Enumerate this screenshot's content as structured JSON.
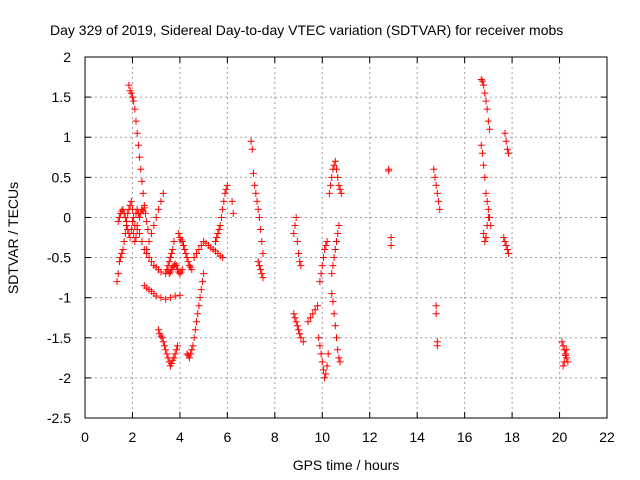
{
  "chart_data": {
    "type": "scatter",
    "title": "Day 329 of 2019, Sidereal Day-to-day VTEC variation (SDTVAR) for receiver mobs",
    "xlabel": "GPS time / hours",
    "ylabel": "SDTVAR / TECUs",
    "xlim": [
      0,
      22
    ],
    "ylim": [
      -2.5,
      2
    ],
    "xticks": [
      0,
      2,
      4,
      6,
      8,
      10,
      12,
      14,
      16,
      18,
      20,
      22
    ],
    "xtick_labels": [
      "0",
      "2",
      "4",
      "6",
      "8",
      "10",
      "12",
      "14",
      "16",
      "18",
      "20",
      "22"
    ],
    "yticks": [
      -2.5,
      -2,
      -1.5,
      -1,
      -0.5,
      0,
      0.5,
      1,
      1.5,
      2
    ],
    "ytick_labels": [
      "-2.5",
      "-2",
      "-1.5",
      "-1",
      "-0.5",
      "0",
      "0.5",
      "1",
      "1.5",
      "2"
    ],
    "grid": true,
    "marker": "+",
    "color": "#ff0000",
    "series": [
      {
        "name": "SDTVAR",
        "x": [
          1.35,
          1.4,
          1.45,
          1.5,
          1.55,
          1.6,
          1.65,
          1.7,
          1.75,
          1.8,
          1.85,
          1.9,
          1.95,
          2.0,
          2.05,
          2.1,
          2.15,
          2.2,
          2.25,
          2.3,
          2.35,
          2.4,
          2.45,
          2.5,
          1.4,
          1.45,
          1.5,
          1.55,
          1.6,
          1.65,
          1.7,
          1.75,
          1.8,
          1.85,
          1.9,
          1.95,
          2.0,
          2.05,
          2.1,
          2.15,
          2.2,
          1.85,
          1.9,
          1.95,
          2.0,
          2.05,
          2.1,
          2.15,
          2.2,
          2.25,
          2.3,
          2.35,
          2.4,
          2.45,
          2.5,
          2.55,
          2.6,
          2.65,
          2.2,
          2.3,
          2.4,
          2.5,
          2.6,
          2.7,
          2.8,
          2.9,
          3.0,
          3.1,
          3.2,
          2.6,
          2.7,
          2.8,
          2.9,
          3.0,
          3.1,
          3.2,
          3.3,
          2.5,
          2.6,
          2.7,
          2.8,
          2.9,
          3.0,
          3.2,
          3.4,
          3.6,
          3.8,
          4.0,
          3.1,
          3.15,
          3.2,
          3.25,
          3.3,
          3.35,
          3.4,
          3.45,
          3.5,
          3.55,
          3.6,
          3.65,
          3.7,
          3.75,
          3.8,
          3.85,
          3.9,
          3.4,
          3.45,
          3.5,
          3.55,
          3.6,
          3.65,
          3.7,
          3.75,
          3.5,
          3.55,
          3.6,
          3.65,
          3.7,
          3.75,
          3.8,
          3.85,
          3.9,
          3.95,
          4.0,
          4.05,
          4.1,
          3.95,
          4.0,
          4.05,
          4.1,
          4.15,
          4.2,
          4.25,
          4.3,
          4.35,
          4.4,
          4.45,
          4.5,
          4.3,
          4.35,
          4.4,
          4.45,
          4.5,
          4.55,
          4.6,
          4.65,
          4.7,
          4.75,
          4.8,
          4.85,
          4.9,
          4.95,
          5.0,
          4.6,
          4.7,
          4.8,
          4.9,
          5.0,
          5.1,
          5.2,
          5.3,
          5.4,
          5.5,
          5.6,
          5.7,
          5.8,
          5.5,
          5.55,
          5.6,
          5.65,
          5.7,
          5.75,
          5.8,
          5.85,
          5.9,
          5.95,
          6.0,
          6.2,
          6.25,
          7.0,
          7.05,
          7.1,
          7.15,
          7.2,
          7.25,
          7.3,
          7.35,
          7.4,
          7.45,
          7.5,
          7.3,
          7.35,
          7.4,
          7.45,
          7.5,
          8.8,
          8.85,
          8.9,
          8.95,
          9.0,
          9.05,
          9.1,
          8.8,
          8.85,
          8.9,
          8.95,
          9.0,
          9.05,
          9.1,
          9.2,
          9.4,
          9.5,
          9.6,
          9.7,
          9.8,
          9.85,
          9.9,
          9.95,
          10.0,
          10.05,
          10.1,
          10.15,
          10.2,
          10.25,
          9.9,
          9.95,
          10.0,
          10.05,
          10.1,
          10.15,
          10.2,
          10.3,
          10.35,
          10.4,
          10.45,
          10.5,
          10.55,
          10.6,
          10.65,
          10.7,
          10.75,
          10.8,
          10.4,
          10.45,
          10.5,
          10.55,
          10.6,
          10.65,
          10.7,
          10.4,
          10.45,
          10.5,
          10.55,
          10.6,
          10.65,
          10.7,
          10.75,
          12.8,
          12.8,
          12.9,
          12.9,
          14.7,
          14.75,
          14.8,
          14.85,
          14.9,
          14.95,
          14.8,
          14.8,
          14.85,
          14.85,
          16.7,
          16.75,
          16.8,
          16.85,
          16.9,
          16.95,
          17.0,
          17.05,
          16.7,
          16.75,
          16.8,
          16.85,
          16.9,
          16.95,
          17.0,
          17.05,
          17.1,
          16.8,
          16.85,
          16.9,
          16.95,
          17.0,
          17.7,
          17.75,
          17.8,
          17.85,
          17.65,
          17.7,
          17.75,
          17.8,
          17.85,
          20.1,
          20.15,
          20.2,
          20.25,
          20.3,
          20.35,
          20.15,
          20.2,
          20.25,
          20.3
        ],
        "y": [
          -0.8,
          -0.7,
          -0.55,
          -0.5,
          -0.45,
          -0.4,
          -0.3,
          -0.2,
          -0.05,
          0.05,
          0.1,
          0.15,
          0.2,
          0.1,
          0.0,
          -0.1,
          0.05,
          0.1,
          0.05,
          0.0,
          0.05,
          0.1,
          0.08,
          0.12,
          -0.05,
          0.0,
          0.05,
          0.08,
          0.1,
          0.05,
          0.0,
          -0.1,
          -0.15,
          -0.2,
          -0.25,
          -0.15,
          -0.05,
          -0.2,
          -0.3,
          -0.25,
          -0.15,
          1.65,
          1.58,
          1.55,
          1.5,
          1.45,
          1.35,
          1.2,
          1.05,
          0.9,
          0.75,
          0.6,
          0.45,
          0.3,
          0.15,
          0.05,
          -0.05,
          -0.15,
          -0.1,
          -0.2,
          -0.3,
          -0.4,
          -0.45,
          -0.5,
          -0.55,
          -0.6,
          -0.62,
          -0.65,
          -0.68,
          -0.4,
          -0.3,
          -0.2,
          -0.1,
          0.0,
          0.1,
          0.2,
          0.3,
          -0.85,
          -0.88,
          -0.9,
          -0.92,
          -0.95,
          -0.98,
          -1.0,
          -1.02,
          -1.0,
          -0.98,
          -0.97,
          -1.4,
          -1.45,
          -1.48,
          -1.5,
          -1.55,
          -1.6,
          -1.65,
          -1.7,
          -1.75,
          -1.8,
          -1.85,
          -1.82,
          -1.78,
          -1.75,
          -1.7,
          -1.65,
          -1.6,
          -0.7,
          -0.65,
          -0.6,
          -0.55,
          -0.5,
          -0.45,
          -0.4,
          -0.3,
          -0.65,
          -0.7,
          -0.68,
          -0.65,
          -0.62,
          -0.6,
          -0.58,
          -0.6,
          -0.65,
          -0.68,
          -0.7,
          -0.68,
          -0.65,
          -0.2,
          -0.25,
          -0.28,
          -0.3,
          -0.35,
          -0.4,
          -0.45,
          -0.5,
          -0.55,
          -0.6,
          -0.62,
          -0.65,
          -1.7,
          -1.72,
          -1.75,
          -1.7,
          -1.65,
          -1.6,
          -1.5,
          -1.4,
          -1.3,
          -1.2,
          -1.1,
          -1.0,
          -0.9,
          -0.8,
          -0.7,
          -0.5,
          -0.45,
          -0.4,
          -0.35,
          -0.3,
          -0.32,
          -0.35,
          -0.38,
          -0.4,
          -0.42,
          -0.45,
          -0.48,
          -0.5,
          -0.3,
          -0.25,
          -0.2,
          -0.15,
          -0.1,
          0.0,
          0.1,
          0.2,
          0.3,
          0.35,
          0.4,
          0.2,
          0.05,
          0.95,
          0.85,
          0.55,
          0.4,
          0.3,
          0.2,
          0.1,
          0.0,
          -0.15,
          -0.3,
          -0.45,
          -0.55,
          -0.6,
          -0.65,
          -0.7,
          -0.75,
          -0.2,
          -0.1,
          0.0,
          -0.3,
          -0.45,
          -0.55,
          -0.6,
          -1.2,
          -1.25,
          -1.3,
          -1.35,
          -1.4,
          -1.45,
          -1.5,
          -1.55,
          -1.3,
          -1.25,
          -1.2,
          -1.15,
          -1.1,
          -1.5,
          -1.6,
          -1.7,
          -1.8,
          -1.9,
          -2.0,
          -1.95,
          -1.85,
          -1.7,
          -0.8,
          -0.7,
          -0.6,
          -0.5,
          -0.4,
          -0.35,
          -0.3,
          0.3,
          0.4,
          0.5,
          0.6,
          0.65,
          0.7,
          0.6,
          0.5,
          0.4,
          0.35,
          0.3,
          -0.7,
          -0.6,
          -0.5,
          -0.4,
          -0.3,
          -0.2,
          -0.1,
          -0.95,
          -1.05,
          -1.2,
          -1.35,
          -1.5,
          -1.65,
          -1.75,
          -1.8,
          0.6,
          0.58,
          -0.25,
          -0.35,
          0.6,
          0.5,
          0.4,
          0.3,
          0.2,
          0.1,
          -1.1,
          -1.2,
          -1.55,
          -1.6,
          1.72,
          1.7,
          1.65,
          1.55,
          1.45,
          1.35,
          1.2,
          1.1,
          0.9,
          0.8,
          0.65,
          0.5,
          0.3,
          0.2,
          0.1,
          0.0,
          -0.1,
          -0.2,
          -0.3,
          -0.25,
          -0.1,
          0.0,
          1.05,
          0.95,
          0.85,
          0.8,
          -0.25,
          -0.3,
          -0.35,
          -0.4,
          -0.45,
          -1.55,
          -1.6,
          -1.65,
          -1.7,
          -1.75,
          -1.8,
          -1.85,
          -1.8,
          -1.72,
          -1.65
        ]
      }
    ]
  }
}
